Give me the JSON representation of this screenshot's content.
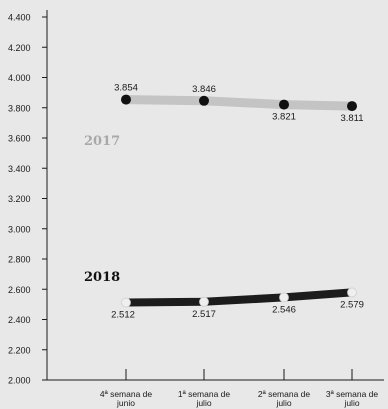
{
  "chart_data": {
    "type": "line",
    "categories": [
      [
        "4ª semana de",
        "junio"
      ],
      [
        "1ª semana de",
        "julio"
      ],
      [
        "2ª semana de",
        "julio"
      ],
      [
        "3ª semana de",
        "julio"
      ]
    ],
    "y_ticks": [
      "2.000",
      "2.200",
      "2.400",
      "2.600",
      "2.800",
      "3.000",
      "3.200",
      "3.400",
      "3.600",
      "3.800",
      "4.000",
      "4.200",
      "4.400"
    ],
    "ylim": [
      2000,
      4400
    ],
    "grid": false,
    "series": [
      {
        "name": "2017",
        "values": [
          3854,
          3846,
          3821,
          3811
        ],
        "labels": [
          "3.854",
          "3.846",
          "3.821",
          "3.811"
        ],
        "line_color": "#c4c4c5",
        "marker_color": "#111111",
        "label_color": "#a8a8a9"
      },
      {
        "name": "2018",
        "values": [
          2512,
          2517,
          2546,
          2579
        ],
        "labels": [
          "2.512",
          "2.517",
          "2.546",
          "2.579"
        ],
        "line_color": "#1c1c1c",
        "marker_color": "#efefef",
        "label_color": "#111111"
      }
    ]
  }
}
